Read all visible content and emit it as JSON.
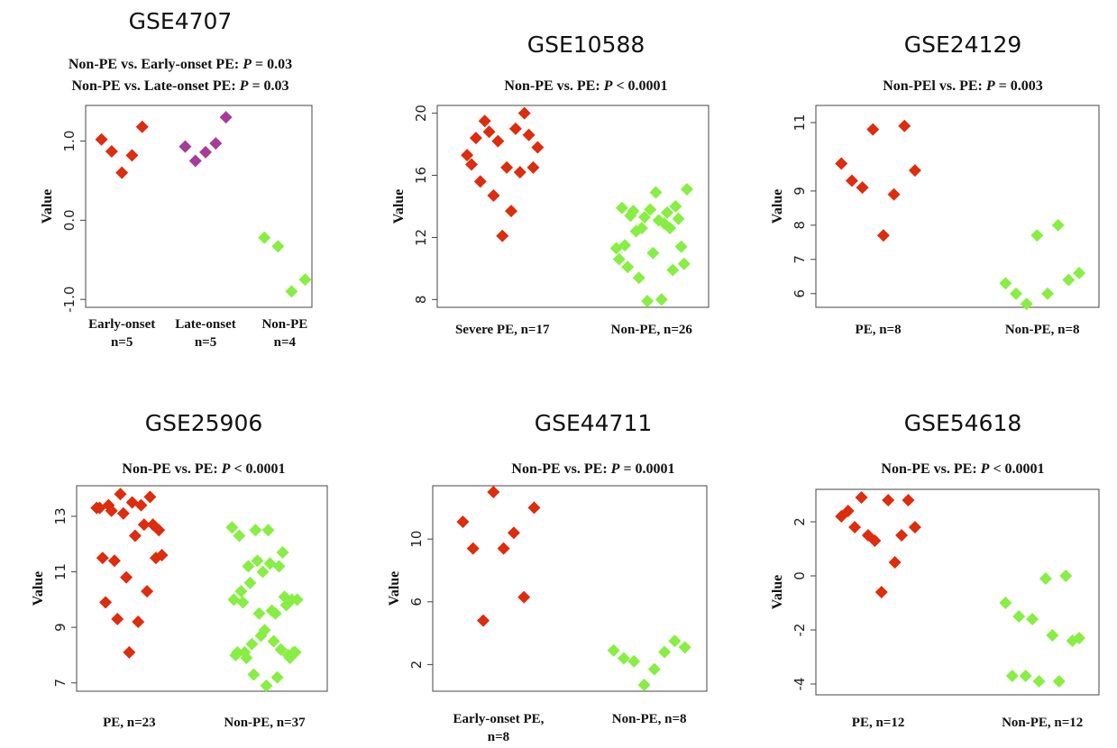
{
  "chart_data": [
    {
      "type": "scatter",
      "title": "GSE4707",
      "subtitle_lines": [
        {
          "prefix": "Non-PE vs. Early-onset PE: ",
          "p": "P",
          "suffix": " = 0.03"
        },
        {
          "prefix": "Non-PE vs. Late-onset PE: ",
          "p": "P",
          "suffix": " = 0.03"
        }
      ],
      "ylabel": "Value",
      "ylim": [
        -1.1,
        1.45
      ],
      "yticks": [
        -1.0,
        0.0,
        1.0
      ],
      "ytick_labels": [
        "-1.0",
        "0.0",
        "1.0"
      ],
      "groups": [
        {
          "label_lines": [
            "Early-onset",
            "n=5"
          ],
          "color": "#dd2c0e",
          "values": [
            1.02,
            0.87,
            0.6,
            0.82,
            1.18
          ]
        },
        {
          "label_lines": [
            "Late-onset",
            "n=5"
          ],
          "color": "#a63c99",
          "values": [
            0.93,
            0.75,
            0.86,
            0.97,
            1.3
          ]
        },
        {
          "label_lines": [
            "Non-PE",
            "n=4"
          ],
          "color": "#88ee44",
          "values": [
            -0.22,
            -0.33,
            -0.9,
            -0.75
          ]
        }
      ]
    },
    {
      "type": "scatter",
      "title": "GSE10588",
      "subtitle_lines": [
        {
          "prefix": "Non-PE vs. PE: ",
          "p": "P",
          "suffix": " < 0.0001"
        }
      ],
      "ylabel": "Value",
      "ylim": [
        7.5,
        20.5
      ],
      "yticks": [
        8,
        12,
        16,
        20
      ],
      "ytick_labels": [
        "8",
        "12",
        "16",
        "20"
      ],
      "groups": [
        {
          "label_lines": [
            "Severe PE, n=17"
          ],
          "color": "#dd2c0e",
          "values": [
            17.3,
            16.7,
            18.4,
            15.6,
            19.5,
            18.8,
            14.7,
            18.2,
            12.1,
            16.5,
            13.7,
            19.0,
            16.2,
            20.0,
            18.6,
            16.5,
            17.8
          ]
        },
        {
          "label_lines": [
            "Non-PE, n=26"
          ],
          "color": "#88ee44",
          "values": [
            11.3,
            10.6,
            13.9,
            11.5,
            10.1,
            13.4,
            13.7,
            12.4,
            9.4,
            12.6,
            13.3,
            7.9,
            13.8,
            11.0,
            14.9,
            13.1,
            8.0,
            12.9,
            13.6,
            12.6,
            9.9,
            14.0,
            13.2,
            11.4,
            10.3,
            15.1
          ]
        }
      ]
    },
    {
      "type": "scatter",
      "title": "GSE24129",
      "subtitle_lines": [
        {
          "prefix": "Non-PEl vs. PE: ",
          "p": "P",
          "suffix": " = 0.003"
        }
      ],
      "ylabel": "Value",
      "ylim": [
        5.6,
        11.5
      ],
      "yticks": [
        6,
        7,
        8,
        9,
        11
      ],
      "ytick_labels": [
        "6",
        "7",
        "8",
        "9",
        "11"
      ],
      "groups": [
        {
          "label_lines": [
            "PE, n=8"
          ],
          "color": "#dd2c0e",
          "values": [
            9.8,
            9.3,
            9.1,
            10.8,
            7.7,
            8.9,
            10.9,
            9.6
          ]
        },
        {
          "label_lines": [
            "Non-PE, n=8"
          ],
          "color": "#88ee44",
          "values": [
            6.3,
            6.0,
            5.7,
            7.7,
            6.0,
            8.0,
            6.4,
            6.6
          ]
        }
      ]
    },
    {
      "type": "scatter",
      "title": "GSE25906",
      "subtitle_lines": [
        {
          "prefix": "Non-PE vs. PE: ",
          "p": "P",
          "suffix": " < 0.0001"
        }
      ],
      "ylabel": "Value",
      "ylim": [
        6.7,
        14.1
      ],
      "yticks": [
        7,
        9,
        11,
        13
      ],
      "ytick_labels": [
        "7",
        "9",
        "11",
        "13"
      ],
      "groups": [
        {
          "label_lines": [
            "PE, n=23"
          ],
          "color": "#dd2c0e",
          "values": [
            13.3,
            13.3,
            11.5,
            9.9,
            13.4,
            13.2,
            11.4,
            9.3,
            13.8,
            13.1,
            10.8,
            8.1,
            13.5,
            12.3,
            9.2,
            13.4,
            12.7,
            10.3,
            13.7,
            12.7,
            11.5,
            12.5,
            11.6
          ]
        },
        {
          "label_lines": [
            "Non-PE, n=37"
          ],
          "color": "#88ee44",
          "values": [
            12.6,
            10.0,
            8.0,
            8.1,
            12.3,
            10.3,
            9.9,
            8.1,
            7.9,
            11.2,
            10.6,
            8.4,
            7.3,
            12.5,
            11.4,
            9.5,
            8.7,
            11.0,
            8.9,
            6.9,
            12.5,
            11.3,
            9.6,
            8.5,
            9.5,
            7.2,
            11.2,
            8.2,
            11.7,
            10.1,
            9.8,
            8.0,
            7.9,
            10.0,
            8.1,
            8.1,
            10.0
          ]
        }
      ]
    },
    {
      "type": "scatter",
      "title": "GSE44711",
      "subtitle_lines": [
        {
          "prefix": "Non-PE vs. PE: ",
          "p": "P",
          "suffix": " = 0.0001"
        }
      ],
      "ylabel": "Value",
      "ylim": [
        0.3,
        13.4
      ],
      "yticks": [
        2,
        6,
        10
      ],
      "ytick_labels": [
        "2",
        "6",
        "10"
      ],
      "groups": [
        {
          "label_lines": [
            "Early-onset PE,",
            "n=8"
          ],
          "color": "#dd2c0e",
          "values": [
            11.1,
            9.4,
            4.8,
            13.0,
            9.4,
            10.4,
            6.3,
            12.0
          ]
        },
        {
          "label_lines": [
            "Non-PE, n=8"
          ],
          "color": "#88ee44",
          "values": [
            2.9,
            2.4,
            2.2,
            0.7,
            1.7,
            2.8,
            3.5,
            3.1
          ]
        }
      ]
    },
    {
      "type": "scatter",
      "title": "GSE54618",
      "subtitle_lines": [
        {
          "prefix": "Non-PE vs. PE: ",
          "p": "P",
          "suffix": " < 0.0001"
        }
      ],
      "ylabel": "Value",
      "ylim": [
        -4.4,
        3.2
      ],
      "yticks": [
        -4,
        -2,
        0,
        2
      ],
      "ytick_labels": [
        "-4",
        "-2",
        "0",
        "2"
      ],
      "groups": [
        {
          "label_lines": [
            "PE, n=12"
          ],
          "color": "#dd2c0e",
          "values": [
            2.2,
            2.4,
            1.8,
            2.9,
            1.5,
            1.3,
            -0.6,
            2.8,
            0.5,
            1.5,
            2.8,
            1.8
          ]
        },
        {
          "label_lines": [
            "Non-PE, n=12"
          ],
          "color": "#88ee44",
          "values": [
            -1.0,
            -3.7,
            -1.5,
            -3.7,
            -1.6,
            -3.9,
            -0.1,
            -2.2,
            -3.9,
            0.0,
            -2.4,
            -2.3
          ]
        }
      ]
    }
  ]
}
